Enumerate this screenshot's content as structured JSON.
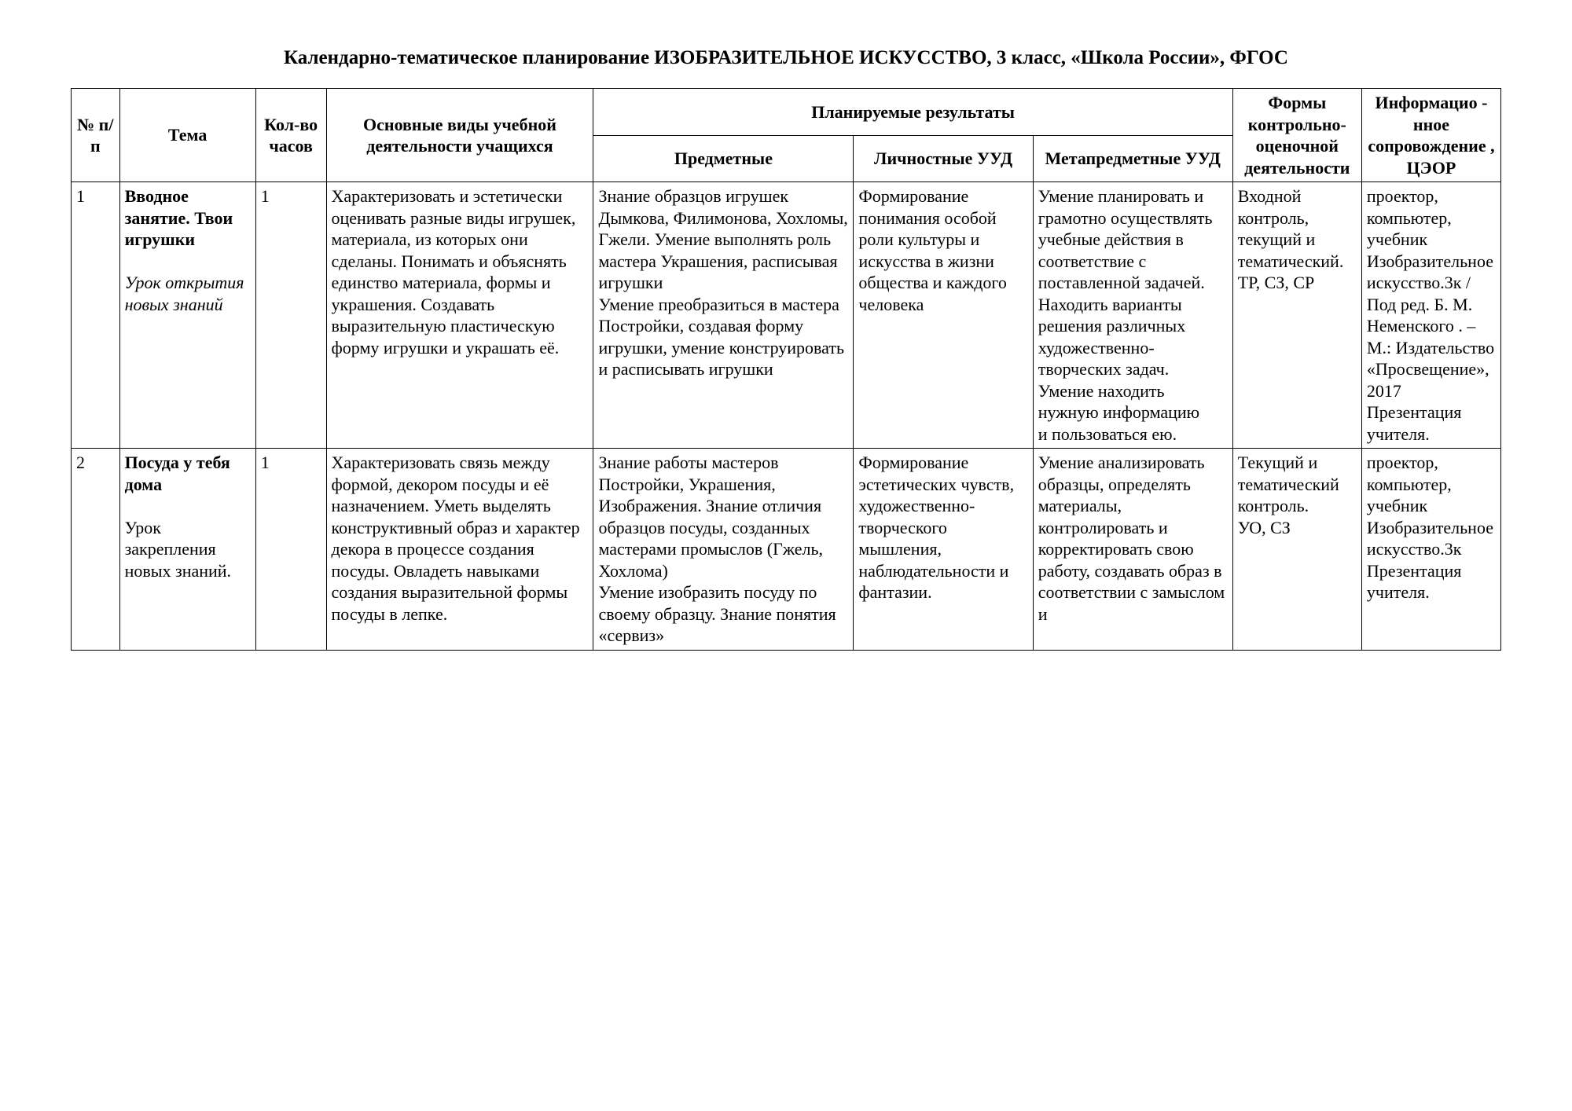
{
  "title": "Календарно-тематическое планирование ИЗОБРАЗИТЕЛЬНОЕ ИСКУССТВО, 3 класс, «Школа России», ФГОС",
  "headers": {
    "num": "№ п/п",
    "topic": "Тема",
    "hours": "Кол-во часов",
    "activities": "Основные виды учебной деятельности учащихся",
    "results_group": "Планируемые результаты",
    "subject": "Предметные",
    "personal": "Личностные УУД",
    "meta": "Метапредметные УУД",
    "forms": "Формы контрольно-оценочной деятельности",
    "info": "Информацио - нное сопровождение , ЦЭОР"
  },
  "rows": [
    {
      "num": "1",
      "topic_bold": "Вводное занятие. Твои игрушки",
      "topic_italic": "Урок открытия новых знаний",
      "hours": "1",
      "activities": "Характеризовать и эстетически оценивать разные виды игрушек, материала, из которых они сделаны. Понимать и объяснять единство материала, формы и украшения. Создавать выразительную пластическую форму игрушки и украшать её.",
      "subject": "Знание образцов игрушек Дымкова, Филимонова, Хохломы, Гжели. Умение выполнять роль мастера Украшения, расписывая игрушки\nУмение преобразиться в мастера Постройки, создавая форму игрушки, умение конструировать  и расписывать игрушки",
      "personal": "Формирование понимания особой роли культуры и искусства в жизни общества и каждого человека",
      "meta": "Умение планировать и грамотно осуществлять учебные действия в соответствие с поставленной задачей. Находить варианты решения различных художественно-творческих задач. Умение  находить нужную информацию\nи пользоваться ею.",
      "forms": "Входной контроль, текущий и тематический. ТР, СЗ, СР",
      "info": "проектор, компьютер, учебник Изобразительное искусство.3к / Под ред.  Б. М. Неменского . – М.: Издательство «Просвещение», 2017 Презентация учителя."
    },
    {
      "num": "2",
      "topic_bold": "Посуда у тебя дома",
      "topic_plain": "Урок закрепления новых знаний.",
      "hours": "1",
      "activities": "Характеризовать связь между формой, декором посуды и её назначением. Уметь выделять конструктивный образ и характер декора в процессе создания посуды. Овладеть навыками  создания выразительной формы посуды в лепке.",
      "subject": "Знание работы мастеров Постройки, Украшения, Изображения. Знание отличия образцов посуды, созданных мастерами промыслов (Гжель, Хохлома)\nУмение изобразить посуду по своему образцу. Знание понятия «сервиз»",
      "personal": "Формирование эстетических чувств, художественно-творческого мышления, наблюдательности и фантазии.",
      "meta": "Умение анализировать образцы, определять материалы, контролировать и корректировать свою работу, создавать образ в соответствии с замыслом и",
      "forms": "Текущий и тематический контроль.\nУО, СЗ",
      "info": "проектор, компьютер, учебник Изобразительное искусство.3к\nПрезентация учителя."
    }
  ]
}
